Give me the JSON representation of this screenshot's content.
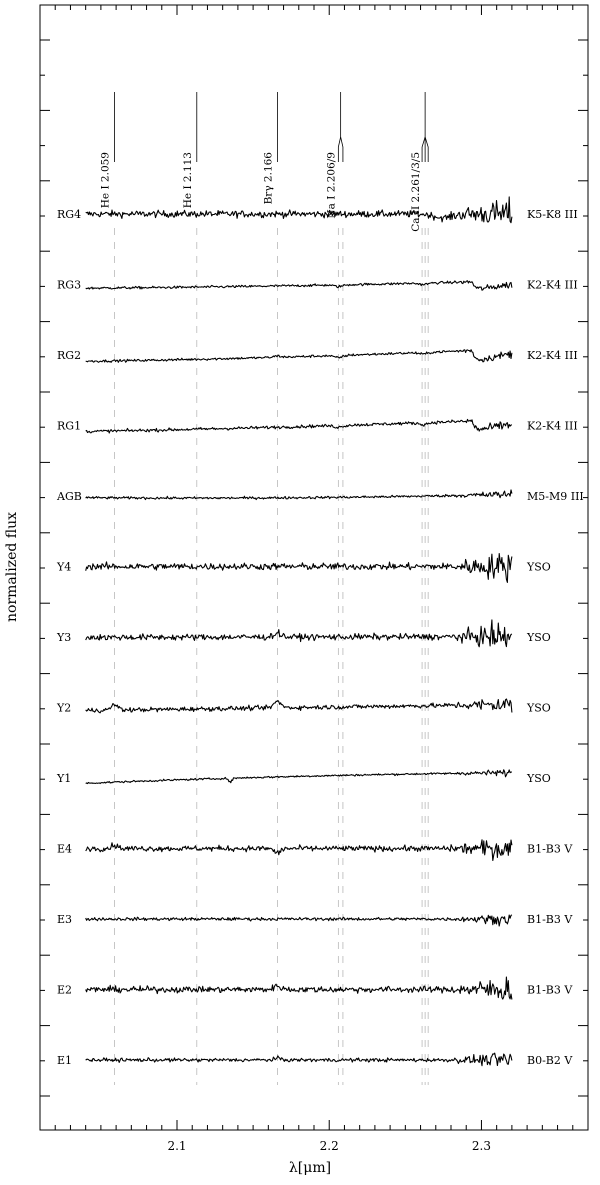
{
  "chart_data": {
    "type": "line",
    "title": "",
    "xlabel": "λ[μm]",
    "ylabel": "normalized flux",
    "xlim": [
      2.01,
      2.37
    ],
    "x_ticks": [
      2.1,
      2.2,
      2.3
    ],
    "x_tick_labels": [
      "2.1",
      "2.2",
      "2.3"
    ],
    "x_range_spectra": [
      2.04,
      2.32
    ],
    "grid": false,
    "legend": "none",
    "line_markers": [
      {
        "label": "He I  2.059",
        "x": [
          2.059
        ],
        "ticks": 1
      },
      {
        "label": "He I  2.113",
        "x": [
          2.113
        ],
        "ticks": 1
      },
      {
        "label": "Brγ 2.166",
        "x": [
          2.166
        ],
        "ticks": 1
      },
      {
        "label": "Na I  2.206/9",
        "x": [
          2.206,
          2.209
        ],
        "ticks": 2
      },
      {
        "label": "Ca II  2.261/3/5",
        "x": [
          2.261,
          2.263,
          2.265
        ],
        "ticks": 3
      }
    ],
    "series": [
      {
        "name": "RG4",
        "type_label": "K5-K8 III",
        "offset": 12,
        "slope": 0.0,
        "curve": 0.0,
        "noise": 0.22,
        "redNoise": 1.2,
        "features": [
          {
            "x": 2.275,
            "d": -0.35,
            "w": 0.008
          }
        ]
      },
      {
        "name": "RG3",
        "type_label": "K2-K4 III",
        "offset": 11,
        "slope": 0.55,
        "curve": -0.1,
        "noise": 0.08,
        "redNoise": 0.7,
        "features": [
          {
            "x": 2.206,
            "d": -0.15,
            "w": 0.004
          },
          {
            "x": 2.262,
            "d": -0.12,
            "w": 0.004
          },
          {
            "x": 2.294,
            "d": -0.8,
            "w": 0.004,
            "step": true
          }
        ]
      },
      {
        "name": "RG2",
        "type_label": "K2-K4 III",
        "offset": 10,
        "slope": 0.95,
        "curve": -0.15,
        "noise": 0.08,
        "redNoise": 0.8,
        "features": [
          {
            "x": 2.166,
            "d": 0.12,
            "w": 0.003
          },
          {
            "x": 2.206,
            "d": -0.2,
            "w": 0.004
          },
          {
            "x": 2.262,
            "d": -0.15,
            "w": 0.004
          },
          {
            "x": 2.294,
            "d": -1.1,
            "w": 0.004,
            "step": true
          }
        ]
      },
      {
        "name": "RG1",
        "type_label": "K2-K4 III",
        "offset": 9,
        "slope": 0.9,
        "curve": -0.1,
        "noise": 0.1,
        "redNoise": 0.8,
        "features": [
          {
            "x": 2.206,
            "d": -0.15,
            "w": 0.004
          },
          {
            "x": 2.262,
            "d": -0.15,
            "w": 0.004
          },
          {
            "x": 2.294,
            "d": -1.0,
            "w": 0.004,
            "step": true
          }
        ]
      },
      {
        "name": "AGB",
        "type_label": "M5-M9 III",
        "offset": 8,
        "slope": 0.25,
        "curve": -0.15,
        "noise": 0.08,
        "redNoise": 0.9,
        "features": []
      },
      {
        "name": "Y4",
        "type_label": "YSO",
        "offset": 7,
        "slope": 0.0,
        "curve": 0.0,
        "noise": 0.22,
        "redNoise": 1.3,
        "features": []
      },
      {
        "name": "Y3",
        "type_label": "YSO",
        "offset": 6,
        "slope": 0.05,
        "curve": 0.0,
        "noise": 0.2,
        "redNoise": 1.3,
        "features": [
          {
            "x": 2.166,
            "d": 0.35,
            "w": 0.0035
          }
        ]
      },
      {
        "name": "Y2",
        "type_label": "YSO",
        "offset": 5,
        "slope": 0.45,
        "curve": 0.0,
        "noise": 0.15,
        "redNoise": 1.0,
        "features": [
          {
            "x": 2.059,
            "d": 0.5,
            "w": 0.003
          },
          {
            "x": 2.166,
            "d": 0.55,
            "w": 0.0035
          }
        ]
      },
      {
        "name": "Y1",
        "type_label": "YSO",
        "offset": 4,
        "slope": 0.8,
        "curve": 0.15,
        "noise": 0.06,
        "redNoise": 1.0,
        "features": [
          {
            "x": 2.135,
            "d": -0.35,
            "w": 0.0015
          }
        ]
      },
      {
        "name": "E4",
        "type_label": "B1-B3 V",
        "offset": 3,
        "slope": 0.0,
        "curve": 0.0,
        "noise": 0.18,
        "redNoise": 1.2,
        "features": [
          {
            "x": 2.059,
            "d": 0.3,
            "w": 0.003
          },
          {
            "x": 2.166,
            "d": -0.4,
            "w": 0.003
          }
        ]
      },
      {
        "name": "E3",
        "type_label": "B1-B3 V",
        "offset": 2,
        "slope": 0.0,
        "curve": 0.0,
        "noise": 0.1,
        "redNoise": 1.0,
        "features": []
      },
      {
        "name": "E2",
        "type_label": "B1-B3 V",
        "offset": 1,
        "slope": 0.0,
        "curve": 0.0,
        "noise": 0.2,
        "redNoise": 1.2,
        "features": [
          {
            "x": 2.166,
            "d": 0.3,
            "w": 0.0035
          }
        ]
      },
      {
        "name": "E1",
        "type_label": "B0-B2 V",
        "offset": 0,
        "slope": 0.0,
        "curve": 0.0,
        "noise": 0.12,
        "redNoise": 1.2,
        "features": [
          {
            "x": 2.166,
            "d": 0.15,
            "w": 0.003
          }
        ]
      }
    ]
  }
}
